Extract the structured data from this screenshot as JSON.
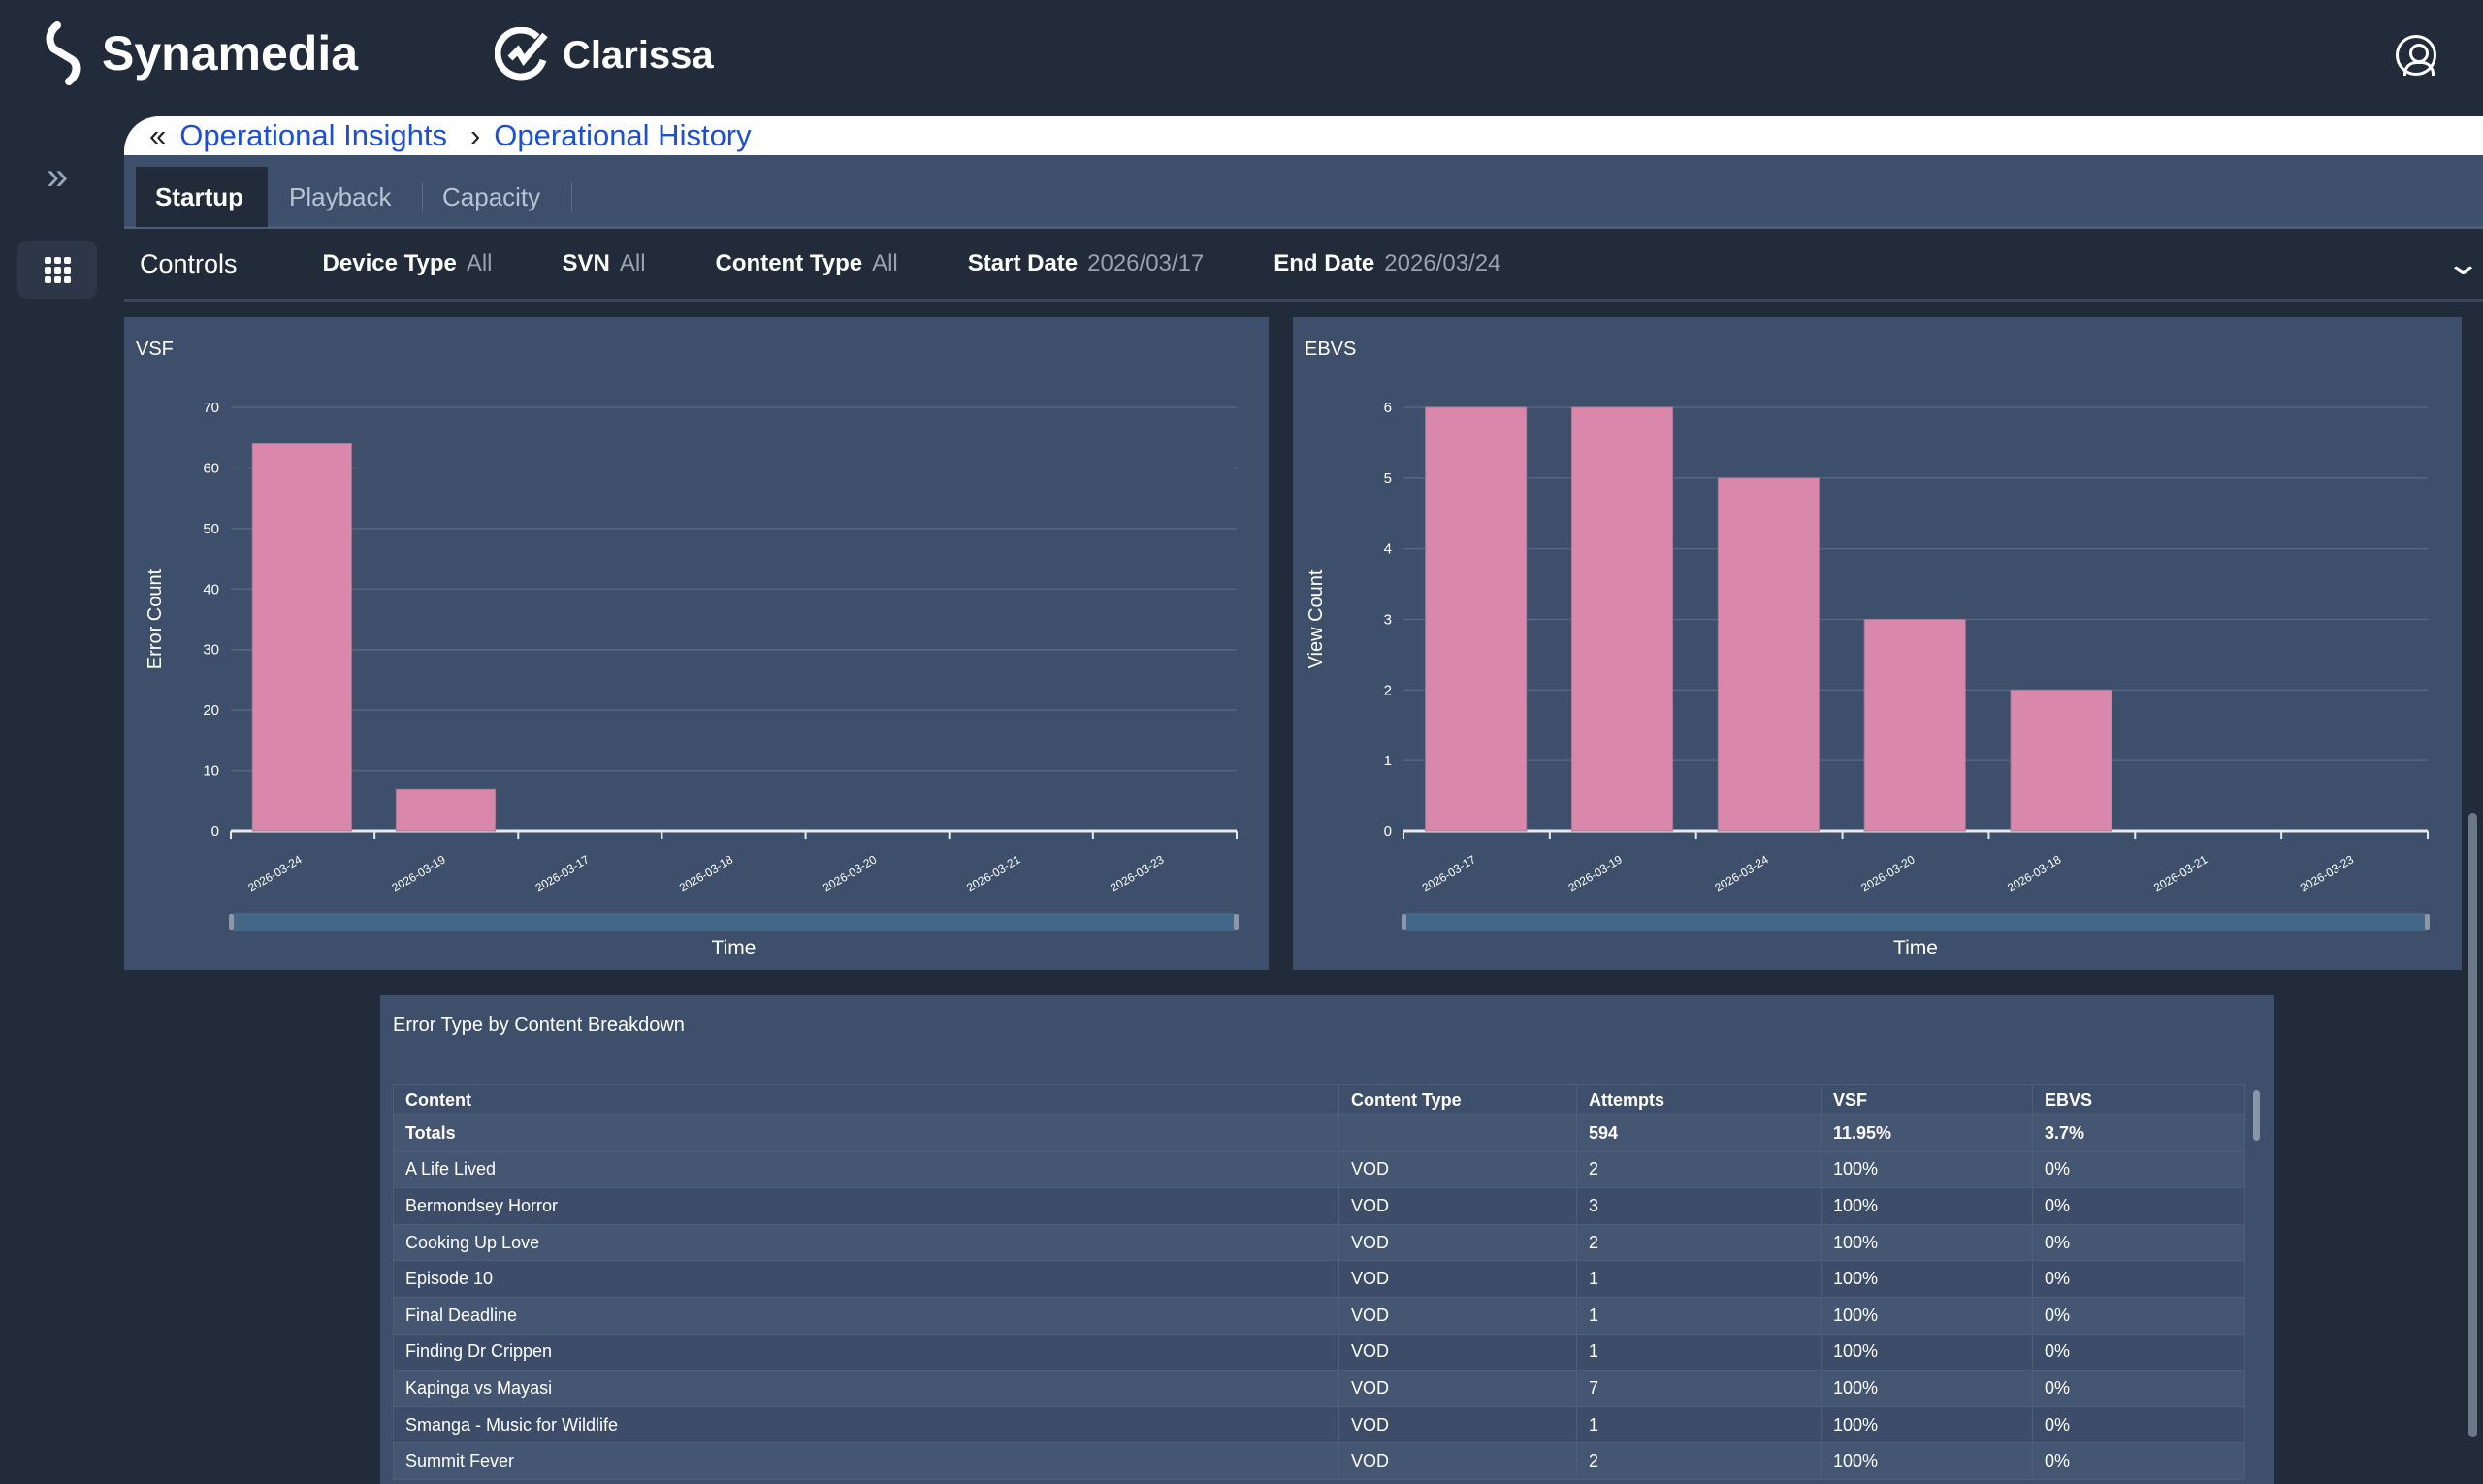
{
  "header": {
    "brand": "Synamedia",
    "product": "Clarissa",
    "icons": [
      "synamedia-logo",
      "clarissa-logo",
      "user-account-icon"
    ]
  },
  "breadcrumb": {
    "items": [
      "Operational Insights",
      "Operational History"
    ]
  },
  "tabs": [
    {
      "label": "Startup",
      "active": true
    },
    {
      "label": "Playback"
    },
    {
      "label": "Capacity"
    }
  ],
  "controls": {
    "title": "Controls",
    "filters": [
      {
        "label": "Device Type",
        "value": "All"
      },
      {
        "label": "SVN",
        "value": "All"
      },
      {
        "label": "Content Type",
        "value": "All"
      },
      {
        "label": "Start Date",
        "value": "2026/03/17"
      },
      {
        "label": "End Date",
        "value": "2026/03/24"
      }
    ]
  },
  "colors": {
    "bar": "#d988ac",
    "panel": "#3e4f6b",
    "background": "#222b3a",
    "link": "#1a4fd6"
  },
  "chart_data": [
    {
      "type": "bar",
      "title": "VSF",
      "xlabel": "Time",
      "ylabel": "Error Count",
      "ylim": [
        0,
        70
      ],
      "yticks": [
        0,
        10,
        20,
        30,
        40,
        50,
        60,
        70
      ],
      "grid": true,
      "categories": [
        "2026-03-24",
        "2026-03-19",
        "2026-03-17",
        "2026-03-18",
        "2026-03-20",
        "2026-03-21",
        "2026-03-23"
      ],
      "values": [
        64,
        7,
        0,
        0,
        0,
        0,
        0
      ]
    },
    {
      "type": "bar",
      "title": "EBVS",
      "xlabel": "Time",
      "ylabel": "View Count",
      "ylim": [
        0,
        6
      ],
      "yticks": [
        0,
        1,
        2,
        3,
        4,
        5,
        6
      ],
      "grid": true,
      "categories": [
        "2026-03-17",
        "2026-03-19",
        "2026-03-24",
        "2026-03-20",
        "2026-03-18",
        "2026-03-21",
        "2026-03-23"
      ],
      "values": [
        6,
        6,
        5,
        3,
        2,
        0,
        0
      ]
    }
  ],
  "table": {
    "title": "Error Type by Content Breakdown",
    "columns": [
      "Content",
      "Content Type",
      "Attempts",
      "VSF",
      "EBVS"
    ],
    "totals": [
      "Totals",
      "",
      "594",
      "11.95%",
      "3.7%"
    ],
    "rows": [
      [
        "A Life Lived",
        "VOD",
        "2",
        "100%",
        "0%"
      ],
      [
        "Bermondsey Horror",
        "VOD",
        "3",
        "100%",
        "0%"
      ],
      [
        "Cooking Up Love",
        "VOD",
        "2",
        "100%",
        "0%"
      ],
      [
        "Episode 10",
        "VOD",
        "1",
        "100%",
        "0%"
      ],
      [
        "Final Deadline",
        "VOD",
        "1",
        "100%",
        "0%"
      ],
      [
        "Finding Dr Crippen",
        "VOD",
        "1",
        "100%",
        "0%"
      ],
      [
        "Kapinga vs Mayasi",
        "VOD",
        "7",
        "100%",
        "0%"
      ],
      [
        "Smanga - Music for Wildlife",
        "VOD",
        "1",
        "100%",
        "0%"
      ],
      [
        "Summit Fever",
        "VOD",
        "2",
        "100%",
        "0%"
      ]
    ]
  }
}
